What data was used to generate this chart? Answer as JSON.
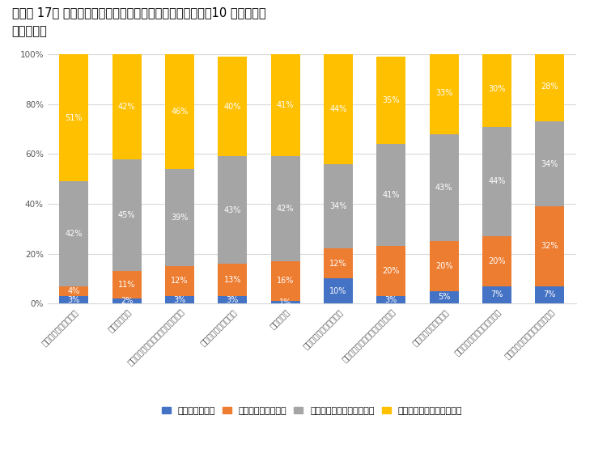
{
  "title_line1": "［図表 17］ 入社予定の会社に対して持っているイメージ：10 項目横断比",
  "title_line2": "較（理系）",
  "categories": [
    "社員を大切にしている",
    "仕事が面白い",
    "風通しが良い・心理的安全性がある",
    "育成に力を入れている",
    "就きやすい",
    "福利厚生が充実している",
    "経営者・経営理念が魅力的である",
    "給与（初任給）が高い",
    "チャレンジ精神が旺盛である",
    "ダイバーシティを推進している"
  ],
  "series": {
    "イメージはない": [
      3,
      2,
      3,
      3,
      1,
      10,
      3,
      5,
      7,
      7
    ],
    "どちらともいえない": [
      4,
      11,
      12,
      13,
      16,
      12,
      20,
      20,
      20,
      32
    ],
    "イメージをやや持っている": [
      42,
      45,
      39,
      43,
      42,
      34,
      41,
      43,
      44,
      34
    ],
    "イメージを強く持っている": [
      51,
      42,
      46,
      40,
      41,
      44,
      35,
      33,
      30,
      28
    ]
  },
  "colors": {
    "イメージはない": "#4472C4",
    "どちらともいえない": "#ED7D31",
    "イメージをやや持っている": "#A5A5A5",
    "イメージを強く持っている": "#FFC000"
  },
  "ylim": [
    0,
    100
  ],
  "yticks": [
    0,
    20,
    40,
    60,
    80,
    100
  ],
  "ytick_labels": [
    "0%",
    "20%",
    "40%",
    "60%",
    "80%",
    "100%"
  ],
  "background_color": "#FFFFFF",
  "grid_color": "#D9D9D9",
  "title_fontsize": 10.5,
  "tick_fontsize": 7.5,
  "legend_fontsize": 8,
  "bar_label_fontsize": 7
}
